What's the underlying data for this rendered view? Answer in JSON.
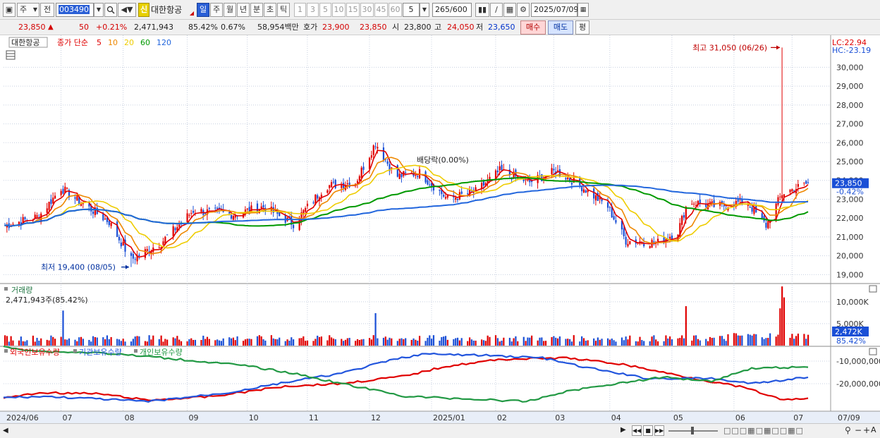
{
  "toolbar": {
    "type_select": "주",
    "prev_label": "전",
    "code": "003490",
    "credit_badge": "신",
    "name": "대한항공",
    "period_tabs": [
      "일",
      "주",
      "월",
      "년",
      "분",
      "초",
      "틱"
    ],
    "active_period": "일",
    "interval_buttons": [
      "1",
      "3",
      "5",
      "10",
      "15",
      "30",
      "45",
      "60"
    ],
    "interval_value": "5",
    "count_value": "265",
    "count_max": "/600",
    "date_value": "2025/07/09"
  },
  "quote": {
    "price": "23,850",
    "change": "50",
    "change_pct": "+0.21%",
    "volume": "2,471,943",
    "volume_pct": "85.42%",
    "turnover_pct": "0.67%",
    "amount": "58,954백만",
    "ask_label": "호가",
    "ask": "23,900",
    "bid": "23,850",
    "open_label": "시",
    "open": "23,800",
    "high_label": "고",
    "high": "24,050",
    "low_label": "저",
    "low": "23,650",
    "buy_label": "매수",
    "sell_label": "매도",
    "eval_label": "평"
  },
  "price_panel": {
    "legend_name": "대한항공",
    "legend_ma_label": "종가 단순",
    "legend_ma": [
      {
        "period": "5",
        "color": "#e00000"
      },
      {
        "period": "10",
        "color": "#ee8800"
      },
      {
        "period": "20",
        "color": "#eecc00"
      },
      {
        "period": "60",
        "color": "#009900"
      },
      {
        "period": "120",
        "color": "#2266dd"
      }
    ],
    "lc": "LC:22.94",
    "hc": "HC:-23.19",
    "high_annotation": "최고 31,050 (06/26)",
    "low_annotation": "최저 19,400 (08/05)",
    "dividend_annotation": "배당락(0.00%)",
    "current_price_tag": "23,850",
    "current_pct_tag": "-0.42%"
  },
  "volume_panel": {
    "title": "거래량",
    "value": "2,471,943주(85.42%)",
    "current_tag": "2,472K",
    "current_pct_tag": "85.42%"
  },
  "holdings_panel": {
    "legend": [
      {
        "label": "외국인보유수량",
        "color": "#e00000"
      },
      {
        "label": "기관보유수량",
        "color": "#2255dd"
      },
      {
        "label": "개인보유수량",
        "color": "#229944"
      }
    ]
  },
  "x_axis_labels": [
    "2024/06",
    "07",
    "08",
    "09",
    "10",
    "11",
    "12",
    "2025/01",
    "02",
    "03",
    "04",
    "05",
    "06",
    "07",
    "07/09"
  ],
  "chart_data": [
    {
      "type": "candlestick",
      "title": "대한항공",
      "y_ticks": [
        "30,000",
        "29,000",
        "28,000",
        "27,000",
        "26,000",
        "25,000",
        "24,000",
        "23,000",
        "22,000",
        "21,000",
        "20,000",
        "19,000"
      ],
      "ylim": [
        18600,
        31700
      ],
      "x_months": [
        "2024/06",
        "07",
        "08",
        "09",
        "10",
        "11",
        "12",
        "2025/01",
        "02",
        "03",
        "04",
        "05",
        "06",
        "07"
      ],
      "close_path": [
        {
          "date": "2024/06/03",
          "value": 21600
        },
        {
          "date": "2024/06/20",
          "value": 22100
        },
        {
          "date": "2024/07/01",
          "value": 23600
        },
        {
          "date": "2024/07/10",
          "value": 22900
        },
        {
          "date": "2024/07/25",
          "value": 21800
        },
        {
          "date": "2024/08/05",
          "value": 19800
        },
        {
          "date": "2024/08/20",
          "value": 20700
        },
        {
          "date": "2024/09/05",
          "value": 22400
        },
        {
          "date": "2024/09/25",
          "value": 22200
        },
        {
          "date": "2024/10/10",
          "value": 22600
        },
        {
          "date": "2024/10/25",
          "value": 21700
        },
        {
          "date": "2024/11/10",
          "value": 23700
        },
        {
          "date": "2024/11/25",
          "value": 23900
        },
        {
          "date": "2024/12/05",
          "value": 26000
        },
        {
          "date": "2024/12/15",
          "value": 24200
        },
        {
          "date": "2024/12/27",
          "value": 24400
        },
        {
          "date": "2025/01/10",
          "value": 23000
        },
        {
          "date": "2025/01/24",
          "value": 23400
        },
        {
          "date": "2025/02/05",
          "value": 24500
        },
        {
          "date": "2025/02/20",
          "value": 23900
        },
        {
          "date": "2025/03/05",
          "value": 24500
        },
        {
          "date": "2025/03/15",
          "value": 23900
        },
        {
          "date": "2025/03/31",
          "value": 22600
        },
        {
          "date": "2025/04/09",
          "value": 20800
        },
        {
          "date": "2025/04/25",
          "value": 20700
        },
        {
          "date": "2025/05/05",
          "value": 21300
        },
        {
          "date": "2025/05/10",
          "value": 22900
        },
        {
          "date": "2025/05/25",
          "value": 22600
        },
        {
          "date": "2025/06/08",
          "value": 22900
        },
        {
          "date": "2025/06/18",
          "value": 21600
        },
        {
          "date": "2025/06/26",
          "value": 23300
        },
        {
          "date": "2025/07/09",
          "value": 23850
        }
      ],
      "max": {
        "date": "2025/06/26",
        "value": 31050
      },
      "min": {
        "date": "2024/08/05",
        "value": 19400
      },
      "last_close": 23850,
      "moving_averages": [
        "5",
        "10",
        "20",
        "60",
        "120"
      ]
    },
    {
      "type": "bar",
      "title": "거래량",
      "y_ticks": [
        "10,000K",
        "5,000K"
      ],
      "ylim": [
        0,
        14000
      ],
      "last_value_k": 2472,
      "spikes": [
        {
          "date": "2024/07/02",
          "value_k": 8000
        },
        {
          "date": "2024/12/05",
          "value_k": 7400
        },
        {
          "date": "2025/05/09",
          "value_k": 9000
        },
        {
          "date": "2025/06/25",
          "value_k": 8500
        },
        {
          "date": "2025/06/26",
          "value_k": 13500
        },
        {
          "date": "2025/06/27",
          "value_k": 11000
        }
      ]
    },
    {
      "type": "line",
      "title": "",
      "y_ticks": [
        "-10,000,000",
        "-20,000,000"
      ],
      "series": [
        {
          "name": "외국인보유수량",
          "color": "#e00000"
        },
        {
          "name": "기관보유수량",
          "color": "#2255dd"
        },
        {
          "name": "개인보유수량",
          "color": "#229944"
        }
      ]
    }
  ]
}
